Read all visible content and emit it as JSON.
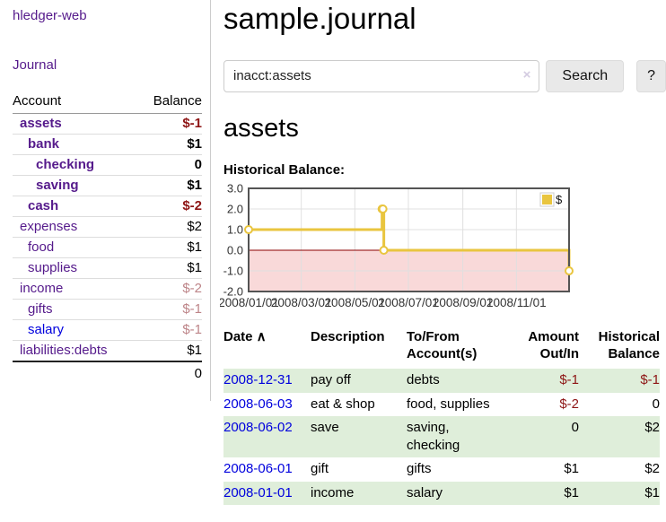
{
  "app": {
    "brand": "hledger-web",
    "nav_journal": "Journal"
  },
  "colors": {
    "link_purple": "#551a8b",
    "link_blue": "#0000dd",
    "negative_strong": "#8e1515",
    "negative_soft": "#bd8488",
    "row_stripe_green": "#dfeeda",
    "series_gold": "#e9c53f",
    "negative_region_pink": "#f9d9d9",
    "zero_line_dark_red": "#8b0000"
  },
  "sidebar": {
    "columns": {
      "account": "Account",
      "balance": "Balance"
    },
    "accounts": [
      {
        "name": "assets",
        "depth": 1,
        "strong": true,
        "balance": "$-1"
      },
      {
        "name": "bank",
        "depth": 2,
        "strong": true,
        "balance": "$1"
      },
      {
        "name": "checking",
        "depth": 3,
        "strong": true,
        "balance": "0"
      },
      {
        "name": "saving",
        "depth": 3,
        "strong": true,
        "balance": "$1"
      },
      {
        "name": "cash",
        "depth": 2,
        "strong": true,
        "balance": "$-2"
      },
      {
        "name": "expenses",
        "depth": 1,
        "strong": false,
        "balance": "$2"
      },
      {
        "name": "food",
        "depth": 2,
        "strong": false,
        "balance": "$1"
      },
      {
        "name": "supplies",
        "depth": 2,
        "strong": false,
        "balance": "$1"
      },
      {
        "name": "income",
        "depth": 1,
        "strong": false,
        "balance": "$-2"
      },
      {
        "name": "gifts",
        "depth": 2,
        "strong": false,
        "balance": "$-1"
      },
      {
        "name": "salary",
        "depth": 2,
        "strong": false,
        "balance": "$-1",
        "link_color": "blue"
      },
      {
        "name": "liabilities:debts",
        "depth": 1,
        "strong": false,
        "balance": "$1",
        "last": true
      }
    ],
    "total": "0"
  },
  "header": {
    "title": "sample.journal"
  },
  "search": {
    "value": "inacct:assets",
    "clear_icon": "×",
    "button_label": "Search",
    "help_label": "?"
  },
  "account_page": {
    "title": "assets",
    "chart_label": "Historical Balance:"
  },
  "chart_data": {
    "type": "line",
    "style": "steps",
    "title": "Historical Balance:",
    "xlim": [
      "2008-01-01",
      "2008-12-31"
    ],
    "ylim": [
      -2,
      3
    ],
    "grid": true,
    "legend": {
      "label": "$",
      "position": "top-right"
    },
    "series": [
      {
        "name": "$",
        "color": "#e9c53f",
        "points": [
          [
            "2008-01-01",
            1
          ],
          [
            "2008-06-01",
            2
          ],
          [
            "2008-06-02",
            2
          ],
          [
            "2008-06-03",
            0
          ],
          [
            "2008-12-31",
            -1
          ]
        ]
      }
    ],
    "x_ticks": [
      {
        "t": "2008-01-01",
        "label": "2008/01/01"
      },
      {
        "t": "2008-03-01",
        "label": "2008/03/01"
      },
      {
        "t": "2008-05-01",
        "label": "2008/05/01"
      },
      {
        "t": "2008-07-01",
        "label": "2008/07/01"
      },
      {
        "t": "2008-09-01",
        "label": "2008/09/01"
      },
      {
        "t": "2008-11-01",
        "label": "2008/11/01"
      }
    ],
    "y_ticks": [
      {
        "v": 3,
        "label": "3.0"
      },
      {
        "v": 2,
        "label": "2.0"
      },
      {
        "v": 1,
        "label": "1.0"
      },
      {
        "v": 0,
        "label": "0.0"
      },
      {
        "v": -1,
        "label": "-1.0"
      },
      {
        "v": -2,
        "label": "-2.0"
      }
    ],
    "negative_fill": "#f9d9d9",
    "zero_line_color": "#8b0000"
  },
  "register": {
    "sort_icon": "∧",
    "columns": [
      {
        "label": "Date",
        "sorted": true
      },
      {
        "label": "Description"
      },
      {
        "label": "To/From\nAccount(s)"
      },
      {
        "label": "Amount\nOut/In",
        "align": "right"
      },
      {
        "label": "Historical\nBalance",
        "align": "right"
      }
    ],
    "rows": [
      {
        "date": "2008-12-31",
        "description": "pay off",
        "accounts": "debts",
        "amount": "$-1",
        "balance": "$-1"
      },
      {
        "date": "2008-06-03",
        "description": "eat & shop",
        "accounts": "food, supplies",
        "amount": "$-2",
        "balance": "0"
      },
      {
        "date": "2008-06-02",
        "description": "save",
        "accounts": "saving,\nchecking",
        "amount": "0",
        "balance": "$2"
      },
      {
        "date": "2008-06-01",
        "description": "gift",
        "accounts": "gifts",
        "amount": "$1",
        "balance": "$2"
      },
      {
        "date": "2008-01-01",
        "description": "income",
        "accounts": "salary",
        "amount": "$1",
        "balance": "$1"
      }
    ]
  }
}
